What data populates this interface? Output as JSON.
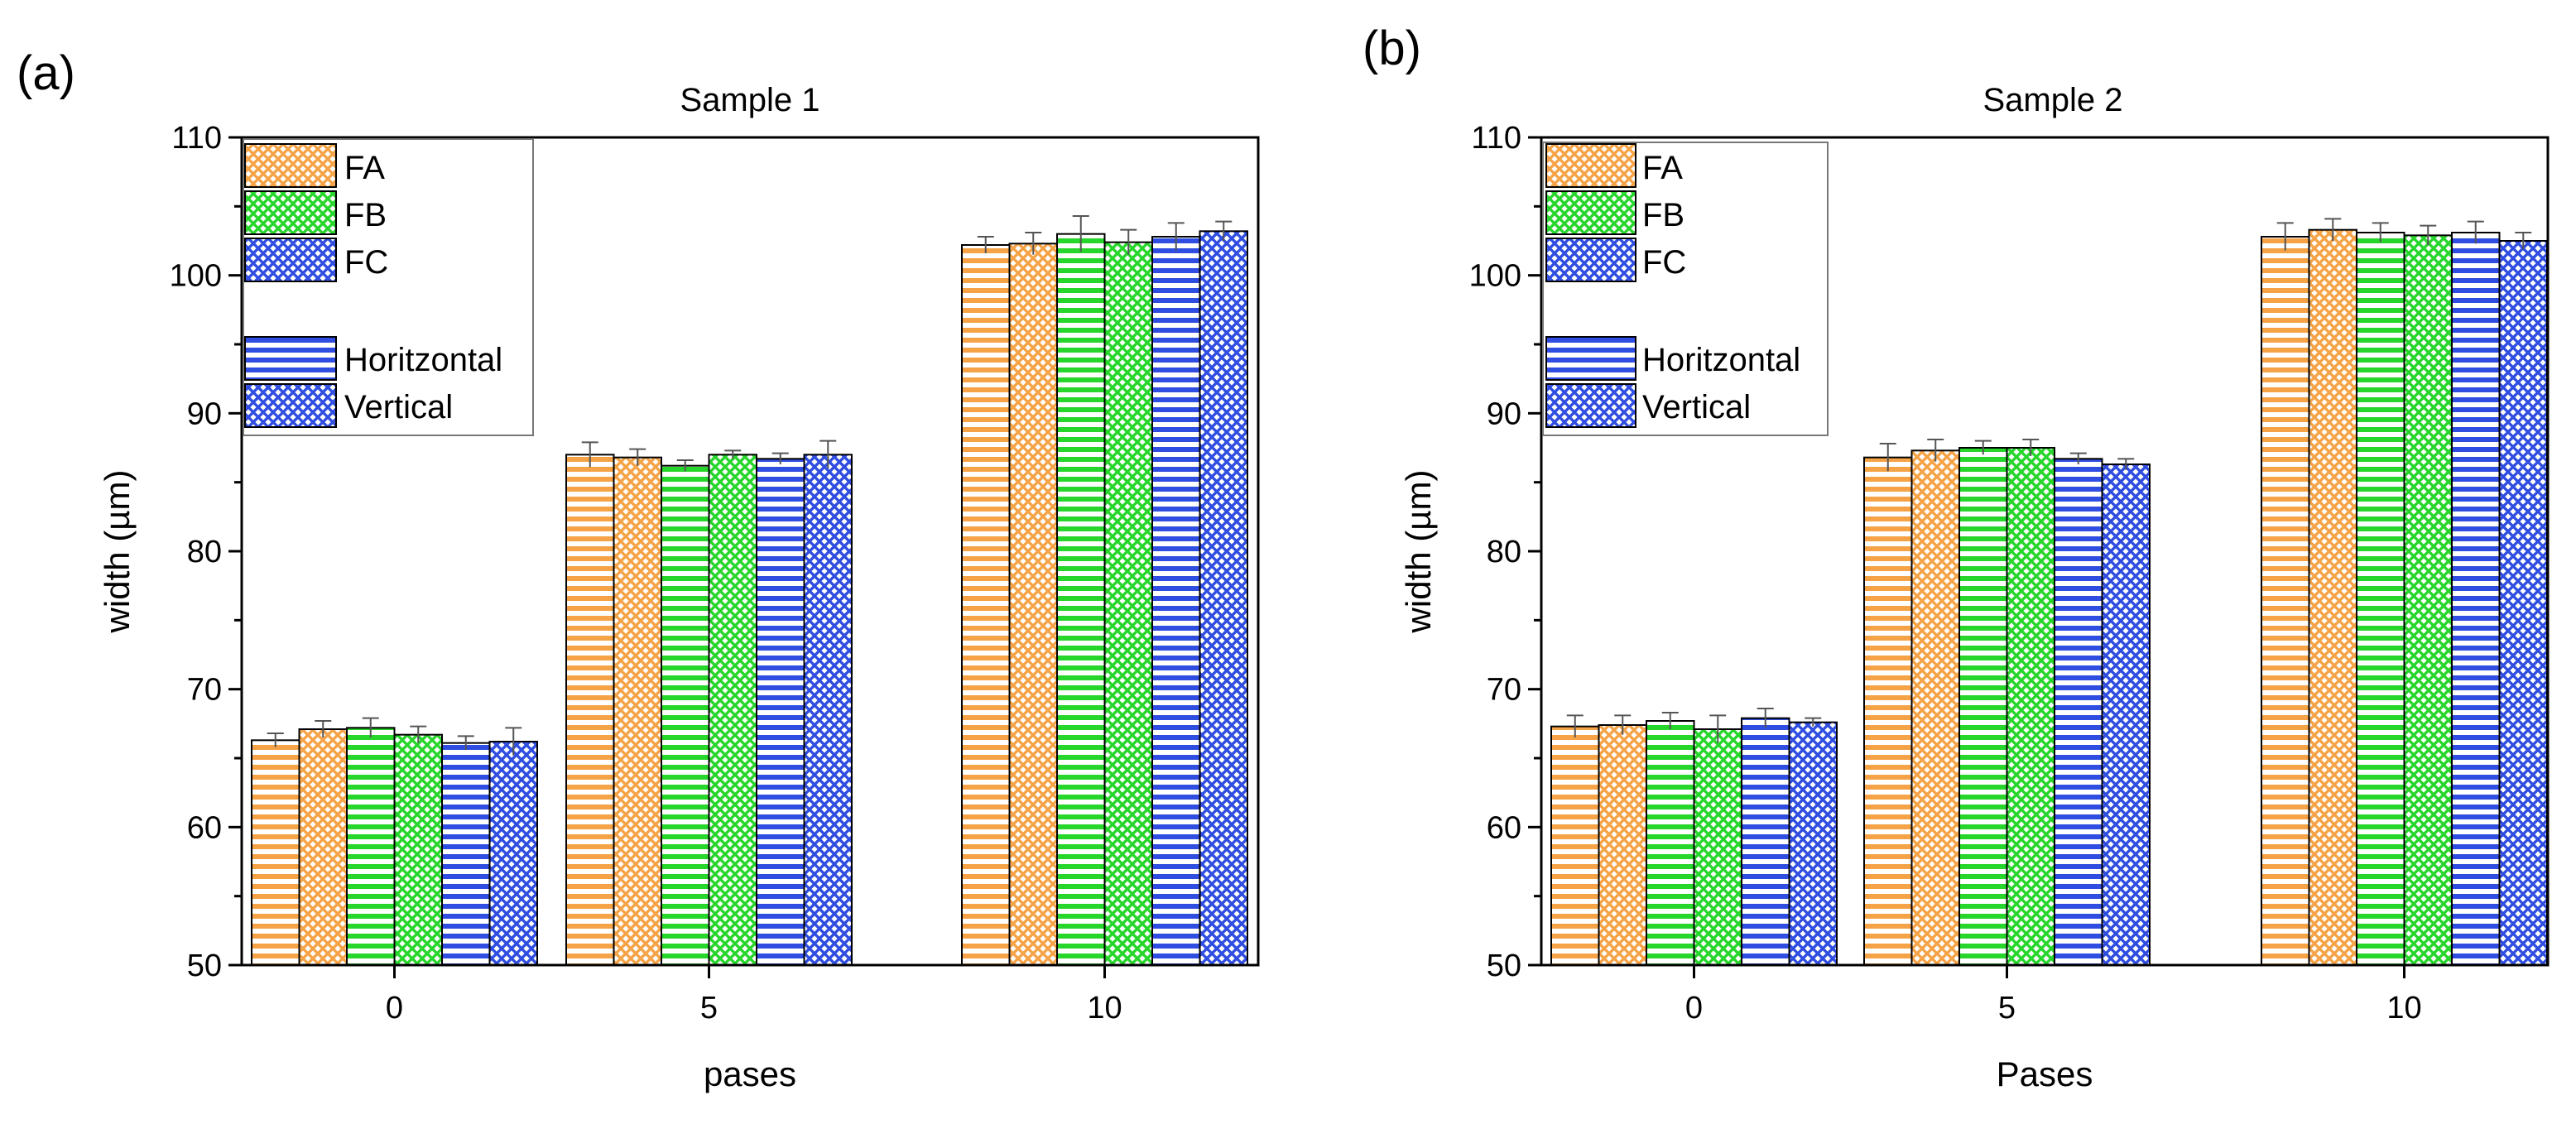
{
  "panels": [
    {
      "label": "(a)"
    },
    {
      "label": "(b)"
    }
  ],
  "legend": {
    "entries": [
      {
        "label": "FA",
        "color": "#f5a346",
        "pattern": "cross"
      },
      {
        "label": "FB",
        "color": "#27d62b",
        "pattern": "cross"
      },
      {
        "label": "FC",
        "color": "#2f4de0",
        "pattern": "cross"
      },
      {
        "label": "Horitzontal",
        "color": "#2f4de0",
        "pattern": "hlines"
      },
      {
        "label": "Vertical",
        "color": "#2f4de0",
        "pattern": "cross"
      }
    ]
  },
  "chart_data": [
    {
      "type": "bar",
      "title": "Sample 1",
      "xlabel": "pases",
      "ylabel": "width (µm)",
      "ylim": [
        50,
        110
      ],
      "yticks": [
        "50",
        "60",
        "70",
        "80",
        "90",
        "100",
        "110"
      ],
      "categories": [
        "0",
        "5",
        "10"
      ],
      "series": [
        {
          "name": "FA Horitzontal",
          "color": "#f5a346",
          "pattern": "hlines",
          "values": [
            66.3,
            87.0,
            102.2
          ],
          "errors": [
            0.5,
            0.9,
            0.6
          ]
        },
        {
          "name": "FA Vertical",
          "color": "#f5a346",
          "pattern": "cross",
          "values": [
            67.1,
            86.8,
            102.3
          ],
          "errors": [
            0.6,
            0.6,
            0.8
          ]
        },
        {
          "name": "FB Horitzontal",
          "color": "#27d62b",
          "pattern": "hlines",
          "values": [
            67.2,
            86.2,
            103.0
          ],
          "errors": [
            0.7,
            0.4,
            1.3
          ]
        },
        {
          "name": "FB Vertical",
          "color": "#27d62b",
          "pattern": "cross",
          "values": [
            66.7,
            87.0,
            102.4
          ],
          "errors": [
            0.6,
            0.3,
            0.9
          ]
        },
        {
          "name": "FC Horitzontal",
          "color": "#2f4de0",
          "pattern": "hlines",
          "values": [
            66.1,
            86.7,
            102.8
          ],
          "errors": [
            0.5,
            0.4,
            1.0
          ]
        },
        {
          "name": "FC Vertical",
          "color": "#2f4de0",
          "pattern": "cross",
          "values": [
            66.2,
            87.0,
            103.2
          ],
          "errors": [
            1.0,
            1.0,
            0.7
          ]
        }
      ]
    },
    {
      "type": "bar",
      "title": "Sample 2",
      "xlabel": "Pases",
      "ylabel": "width (µm)",
      "ylim": [
        50,
        110
      ],
      "yticks": [
        "50",
        "60",
        "70",
        "80",
        "90",
        "100",
        "110"
      ],
      "categories": [
        "0",
        "5",
        "10"
      ],
      "series": [
        {
          "name": "FA Horitzontal",
          "color": "#f5a346",
          "pattern": "hlines",
          "values": [
            67.3,
            86.8,
            102.8
          ],
          "errors": [
            0.8,
            1.0,
            1.0
          ]
        },
        {
          "name": "FA Vertical",
          "color": "#f5a346",
          "pattern": "cross",
          "values": [
            67.4,
            87.3,
            103.3
          ],
          "errors": [
            0.7,
            0.8,
            0.8
          ]
        },
        {
          "name": "FB Horitzontal",
          "color": "#27d62b",
          "pattern": "hlines",
          "values": [
            67.7,
            87.5,
            103.1
          ],
          "errors": [
            0.6,
            0.5,
            0.7
          ]
        },
        {
          "name": "FB Vertical",
          "color": "#27d62b",
          "pattern": "cross",
          "values": [
            67.1,
            87.5,
            102.9
          ],
          "errors": [
            1.0,
            0.6,
            0.7
          ]
        },
        {
          "name": "FC Horitzontal",
          "color": "#2f4de0",
          "pattern": "hlines",
          "values": [
            67.9,
            86.7,
            103.1
          ],
          "errors": [
            0.7,
            0.4,
            0.8
          ]
        },
        {
          "name": "FC Vertical",
          "color": "#2f4de0",
          "pattern": "cross",
          "values": [
            67.6,
            86.3,
            102.5
          ],
          "errors": [
            0.3,
            0.4,
            0.6
          ]
        }
      ]
    }
  ]
}
